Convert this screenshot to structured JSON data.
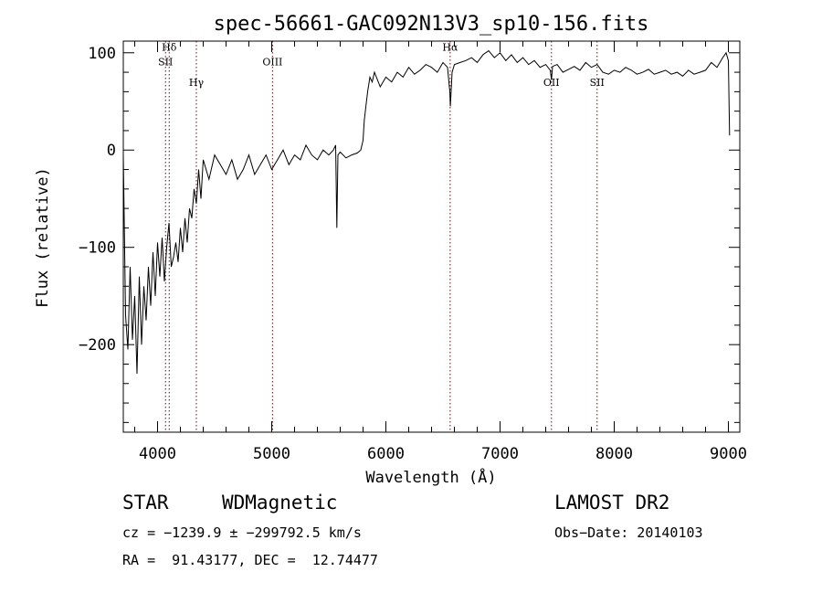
{
  "chart_data": {
    "type": "line",
    "title": "spec-56661-GAC092N13V3_sp10-156.fits",
    "xlabel": "Wavelength (Å)",
    "ylabel": "Flux (relative)",
    "xlim": [
      3700,
      9100
    ],
    "ylim": [
      -290,
      112
    ],
    "xticks": [
      4000,
      5000,
      6000,
      7000,
      8000,
      9000
    ],
    "yticks": [
      100,
      0,
      -100,
      -200
    ],
    "ytick_labels": [
      "100",
      "0",
      "−100",
      "−200"
    ],
    "line_color": "#000000",
    "marker_color": "#8b0000",
    "spectral_lines": [
      {
        "label": "Hδ",
        "wavelength": 4102,
        "label_y": 102
      },
      {
        "label": "SII",
        "wavelength": 4070,
        "label_y": 87
      },
      {
        "label": "Hγ",
        "wavelength": 4340,
        "label_y": 66
      },
      {
        "label": "OIII",
        "wavelength": 5007,
        "label_y": 87
      },
      {
        "label": "Hα",
        "wavelength": 6563,
        "label_y": 102
      },
      {
        "label": "OII",
        "wavelength": 7450,
        "label_y": 66
      },
      {
        "label": "SII",
        "wavelength": 7850,
        "label_y": 66
      }
    ],
    "series": [
      {
        "x": [
          3700,
          3720,
          3740,
          3760,
          3780,
          3800,
          3820,
          3840,
          3860,
          3880,
          3900,
          3920,
          3940,
          3960,
          3980,
          4000,
          4020,
          4040,
          4060,
          4080,
          4100,
          4120,
          4140,
          4160,
          4180,
          4200,
          4220,
          4240,
          4260,
          4280,
          4300,
          4320,
          4340,
          4360,
          4380,
          4400,
          4450,
          4500,
          4550,
          4600,
          4650,
          4700,
          4750,
          4800,
          4850,
          4900,
          4950,
          5000,
          5050,
          5100,
          5150,
          5200,
          5250,
          5300,
          5350,
          5400,
          5450,
          5500,
          5540,
          5560,
          5570,
          5580,
          5600,
          5650,
          5700,
          5750,
          5780,
          5800,
          5810,
          5820,
          5840,
          5860,
          5880,
          5900,
          5950,
          6000,
          6050,
          6100,
          6150,
          6200,
          6250,
          6300,
          6350,
          6400,
          6450,
          6500,
          6540,
          6560,
          6565,
          6580,
          6600,
          6650,
          6700,
          6750,
          6800,
          6850,
          6900,
          6950,
          7000,
          7050,
          7100,
          7150,
          7200,
          7250,
          7300,
          7350,
          7400,
          7440,
          7450,
          7460,
          7500,
          7550,
          7600,
          7650,
          7700,
          7750,
          7800,
          7850,
          7900,
          7950,
          8000,
          8050,
          8100,
          8150,
          8200,
          8250,
          8300,
          8350,
          8400,
          8450,
          8500,
          8550,
          8600,
          8650,
          8700,
          8750,
          8800,
          8850,
          8900,
          8950,
          8980,
          9000,
          9010
        ],
        "y": [
          -5,
          -170,
          -205,
          -120,
          -195,
          -150,
          -230,
          -130,
          -200,
          -140,
          -175,
          -120,
          -160,
          -105,
          -150,
          -95,
          -130,
          -90,
          -135,
          -100,
          -75,
          -120,
          -110,
          -95,
          -115,
          -80,
          -105,
          -70,
          -95,
          -60,
          -70,
          -40,
          -55,
          -20,
          -50,
          -10,
          -30,
          -5,
          -15,
          -25,
          -10,
          -30,
          -20,
          -5,
          -25,
          -15,
          -5,
          -20,
          -10,
          0,
          -15,
          -5,
          -10,
          5,
          -5,
          -10,
          0,
          -5,
          0,
          5,
          -80,
          -5,
          -2,
          -8,
          -5,
          -3,
          0,
          10,
          30,
          40,
          60,
          75,
          70,
          80,
          65,
          75,
          70,
          80,
          75,
          85,
          78,
          82,
          88,
          85,
          80,
          90,
          85,
          60,
          45,
          80,
          88,
          90,
          92,
          95,
          90,
          98,
          102,
          95,
          100,
          92,
          98,
          90,
          95,
          88,
          92,
          85,
          88,
          82,
          72,
          86,
          88,
          80,
          83,
          86,
          82,
          90,
          85,
          88,
          80,
          78,
          82,
          80,
          85,
          82,
          78,
          80,
          83,
          78,
          80,
          82,
          78,
          80,
          76,
          82,
          78,
          80,
          82,
          90,
          85,
          95,
          100,
          92,
          15
        ]
      }
    ]
  },
  "info": {
    "class_label": "STAR",
    "subclass_label": "WDMagnetic",
    "survey_label": "LAMOST DR2",
    "cz_text": "cz = −1239.9 ± −299792.5 km/s",
    "obs_date_text": "Obs−Date: 20140103",
    "radec_text": "RA =  91.43177, DEC =  12.74477"
  }
}
